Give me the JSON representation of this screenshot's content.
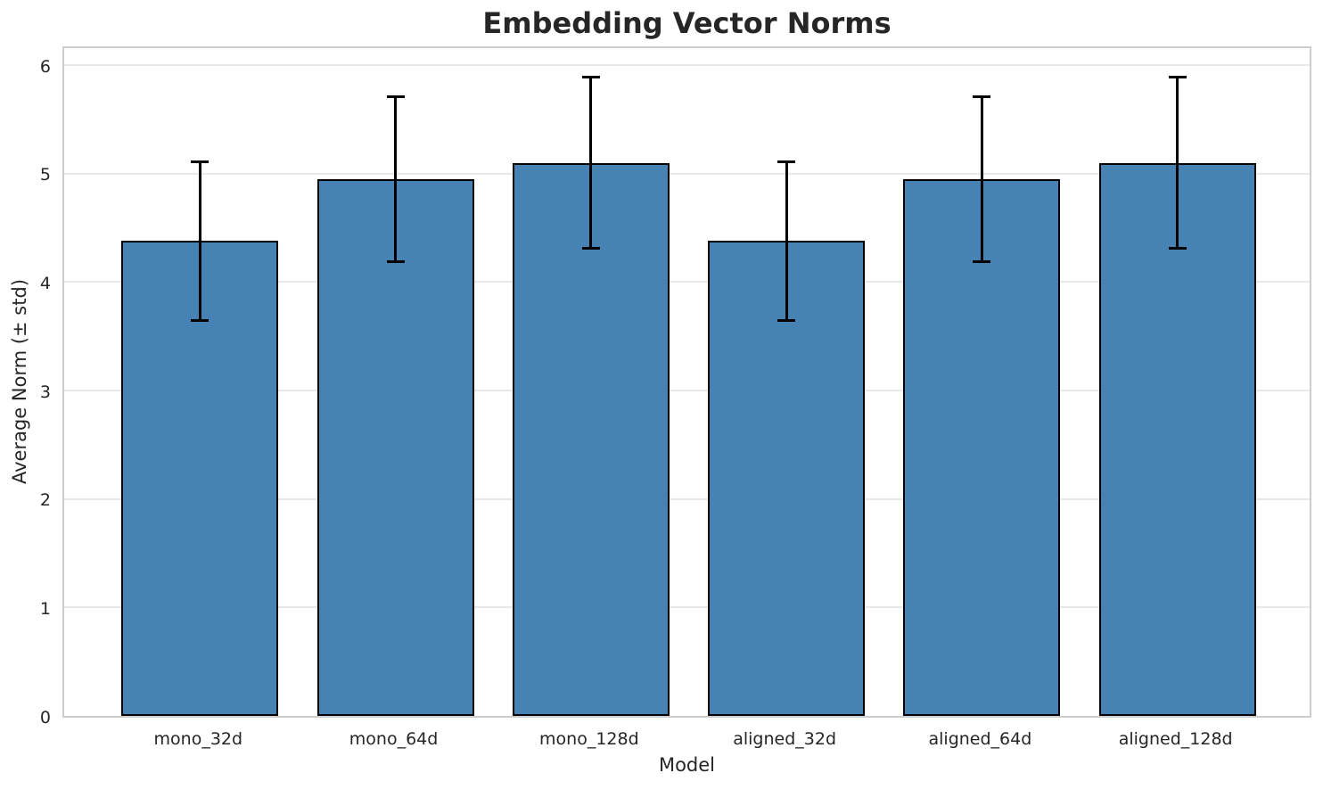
{
  "chart_data": {
    "type": "bar",
    "title": "Embedding Vector Norms",
    "xlabel": "Model",
    "ylabel": "Average Norm (± std)",
    "categories": [
      "mono_32d",
      "mono_64d",
      "mono_128d",
      "aligned_32d",
      "aligned_64d",
      "aligned_128d"
    ],
    "series": [
      {
        "name": "Average Norm",
        "values": [
          4.38,
          4.95,
          5.1,
          4.38,
          4.95,
          5.1
        ],
        "errors": [
          0.73,
          0.76,
          0.79,
          0.73,
          0.76,
          0.79
        ]
      }
    ],
    "yticks": [
      0,
      1,
      2,
      3,
      4,
      5,
      6
    ],
    "ylim": [
      0,
      6.19
    ],
    "grid": true,
    "legend": "none",
    "colors": {
      "bar_fill": "#4682B4",
      "bar_edge": "#000000",
      "error_bar": "#000000",
      "grid_line": "#e9e9e9",
      "axis_spine": "#cccccc",
      "text": "#262626",
      "background": "#ffffff"
    }
  }
}
